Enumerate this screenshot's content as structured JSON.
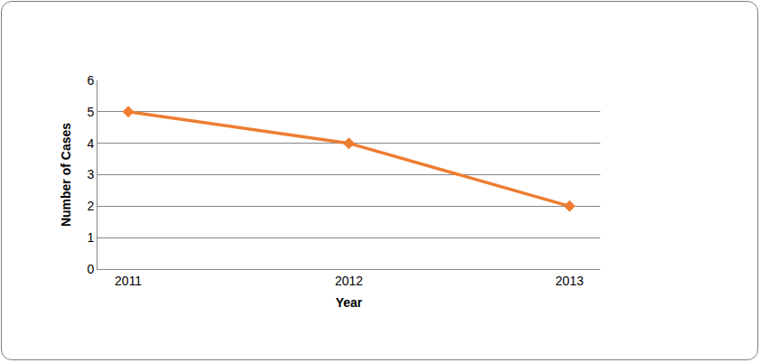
{
  "chart_data": {
    "type": "line",
    "x_label": "Year",
    "y_label": "Number of Cases",
    "categories": [
      "2011",
      "2012",
      "2013"
    ],
    "values": [
      5,
      4,
      2
    ],
    "color": "#ed7d31",
    "marker": "diamond",
    "ylim": [
      0,
      6
    ],
    "yticks": [
      0,
      1,
      2,
      3,
      4,
      5,
      6
    ],
    "grid": true
  }
}
